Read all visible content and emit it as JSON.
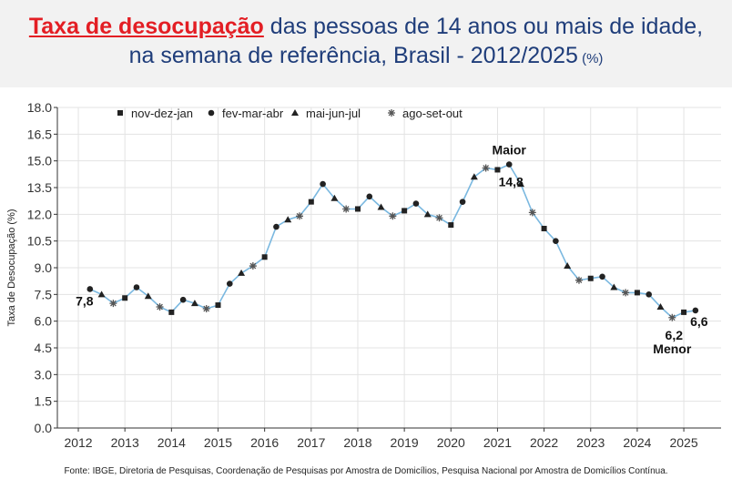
{
  "header": {
    "title_highlight": "Taxa de desocupação",
    "title_rest": " das pessoas de 14 anos ou mais de idade,",
    "title_line2": "na semana de referência, Brasil - 2012/2025",
    "title_unit": " (%)",
    "background": "#f2f2f2",
    "title_color": "#1f3d7a",
    "highlight_color": "#e31e24"
  },
  "source": "Fonte: IBGE, Diretoria de Pesquisas, Coordenação de Pesquisas por Amostra de Domicílios, Pesquisa Nacional por Amostra de Domicílios Contínua.",
  "chart_data": {
    "type": "line",
    "ylabel": "Taxa de Desocupação (%)",
    "xlabel": "",
    "ylim": [
      0,
      18
    ],
    "xlim": [
      2011.55,
      2025.8
    ],
    "yticks": [
      0.0,
      1.5,
      3.0,
      4.5,
      6.0,
      7.5,
      9.0,
      10.5,
      12.0,
      13.5,
      15.0,
      16.5,
      18.0
    ],
    "ytick_labels": [
      "0.0",
      "1.5",
      "3.0",
      "4.5",
      "6.0",
      "7.5",
      "9.0",
      "10.5",
      "12.0",
      "13.5",
      "15.0",
      "16.5",
      "18.0"
    ],
    "xticks": [
      2012,
      2013,
      2014,
      2015,
      2016,
      2017,
      2018,
      2019,
      2020,
      2021,
      2022,
      2023,
      2024,
      2025
    ],
    "xtick_labels": [
      "2012",
      "2013",
      "2014",
      "2015",
      "2016",
      "2017",
      "2018",
      "2019",
      "2020",
      "2021",
      "2022",
      "2023",
      "2024",
      "2025"
    ],
    "grid": true,
    "legend_position": "top-left",
    "line_color": "#7ab8e0",
    "marker_color": "#222222",
    "legend": [
      {
        "marker": "square",
        "label": "nov-dez-jan"
      },
      {
        "marker": "circle",
        "label": "fev-mar-abr"
      },
      {
        "marker": "triangle",
        "label": "mai-jun-jul"
      },
      {
        "marker": "star",
        "label": "ago-set-out"
      }
    ],
    "points": [
      {
        "x": 2012.25,
        "y": 7.8,
        "m": "circle"
      },
      {
        "x": 2012.5,
        "y": 7.5,
        "m": "triangle"
      },
      {
        "x": 2012.75,
        "y": 7.0,
        "m": "star"
      },
      {
        "x": 2013.0,
        "y": 7.3,
        "m": "square"
      },
      {
        "x": 2013.25,
        "y": 7.9,
        "m": "circle"
      },
      {
        "x": 2013.5,
        "y": 7.4,
        "m": "triangle"
      },
      {
        "x": 2013.75,
        "y": 6.8,
        "m": "star"
      },
      {
        "x": 2014.0,
        "y": 6.5,
        "m": "square"
      },
      {
        "x": 2014.25,
        "y": 7.2,
        "m": "circle"
      },
      {
        "x": 2014.5,
        "y": 7.0,
        "m": "triangle"
      },
      {
        "x": 2014.75,
        "y": 6.7,
        "m": "star"
      },
      {
        "x": 2015.0,
        "y": 6.9,
        "m": "square"
      },
      {
        "x": 2015.25,
        "y": 8.1,
        "m": "circle"
      },
      {
        "x": 2015.5,
        "y": 8.7,
        "m": "triangle"
      },
      {
        "x": 2015.75,
        "y": 9.1,
        "m": "star"
      },
      {
        "x": 2016.0,
        "y": 9.6,
        "m": "square"
      },
      {
        "x": 2016.25,
        "y": 11.3,
        "m": "circle"
      },
      {
        "x": 2016.5,
        "y": 11.7,
        "m": "triangle"
      },
      {
        "x": 2016.75,
        "y": 11.9,
        "m": "star"
      },
      {
        "x": 2017.0,
        "y": 12.7,
        "m": "square"
      },
      {
        "x": 2017.25,
        "y": 13.7,
        "m": "circle"
      },
      {
        "x": 2017.5,
        "y": 12.9,
        "m": "triangle"
      },
      {
        "x": 2017.75,
        "y": 12.3,
        "m": "star"
      },
      {
        "x": 2018.0,
        "y": 12.3,
        "m": "square"
      },
      {
        "x": 2018.25,
        "y": 13.0,
        "m": "circle"
      },
      {
        "x": 2018.5,
        "y": 12.4,
        "m": "triangle"
      },
      {
        "x": 2018.75,
        "y": 11.9,
        "m": "star"
      },
      {
        "x": 2019.0,
        "y": 12.2,
        "m": "square"
      },
      {
        "x": 2019.25,
        "y": 12.6,
        "m": "circle"
      },
      {
        "x": 2019.5,
        "y": 12.0,
        "m": "triangle"
      },
      {
        "x": 2019.75,
        "y": 11.8,
        "m": "star"
      },
      {
        "x": 2020.0,
        "y": 11.4,
        "m": "square"
      },
      {
        "x": 2020.25,
        "y": 12.7,
        "m": "circle"
      },
      {
        "x": 2020.5,
        "y": 14.1,
        "m": "triangle"
      },
      {
        "x": 2020.75,
        "y": 14.6,
        "m": "star"
      },
      {
        "x": 2021.0,
        "y": 14.5,
        "m": "square"
      },
      {
        "x": 2021.25,
        "y": 14.8,
        "m": "circle"
      },
      {
        "x": 2021.5,
        "y": 13.7,
        "m": "triangle"
      },
      {
        "x": 2021.75,
        "y": 12.1,
        "m": "star"
      },
      {
        "x": 2022.0,
        "y": 11.2,
        "m": "square"
      },
      {
        "x": 2022.25,
        "y": 10.5,
        "m": "circle"
      },
      {
        "x": 2022.5,
        "y": 9.1,
        "m": "triangle"
      },
      {
        "x": 2022.75,
        "y": 8.3,
        "m": "star"
      },
      {
        "x": 2023.0,
        "y": 8.4,
        "m": "square"
      },
      {
        "x": 2023.25,
        "y": 8.5,
        "m": "circle"
      },
      {
        "x": 2023.5,
        "y": 7.9,
        "m": "triangle"
      },
      {
        "x": 2023.75,
        "y": 7.6,
        "m": "star"
      },
      {
        "x": 2024.0,
        "y": 7.6,
        "m": "square"
      },
      {
        "x": 2024.25,
        "y": 7.5,
        "m": "circle"
      },
      {
        "x": 2024.5,
        "y": 6.8,
        "m": "triangle"
      },
      {
        "x": 2024.75,
        "y": 6.2,
        "m": "star"
      },
      {
        "x": 2025.0,
        "y": 6.5,
        "m": "square"
      },
      {
        "x": 2025.25,
        "y": 6.6,
        "m": "circle"
      }
    ],
    "annotations": [
      {
        "text": "7,8",
        "point_index": 0,
        "anchor": "below-left"
      },
      {
        "text": "Maior",
        "point_index": 36,
        "anchor": "above"
      },
      {
        "text": "14,8",
        "point_index": 36,
        "anchor": "below"
      },
      {
        "text": "6,2",
        "point_index": 50,
        "anchor": "below"
      },
      {
        "text": "Menor",
        "point_index": 50,
        "anchor": "below-2"
      },
      {
        "text": "6,6",
        "point_index": 52,
        "anchor": "below-right"
      }
    ]
  }
}
